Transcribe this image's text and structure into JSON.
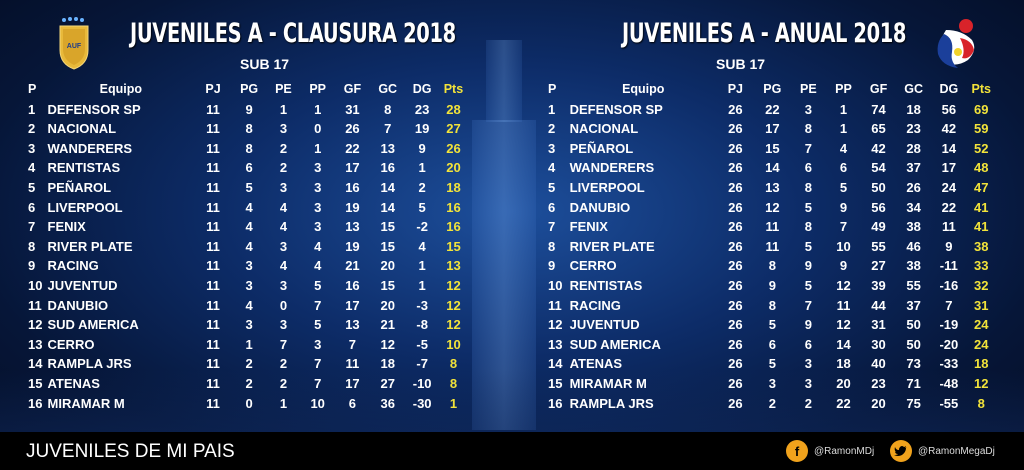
{
  "left": {
    "title": "JUVENILES A - CLAUSURA 2018",
    "subtitle": "SUB 17",
    "columns": [
      "P",
      "Equipo",
      "PJ",
      "PG",
      "PE",
      "PP",
      "GF",
      "GC",
      "DG",
      "Pts"
    ],
    "rows": [
      [
        "1",
        "DEFENSOR SP",
        "11",
        "9",
        "1",
        "1",
        "31",
        "8",
        "23",
        "28"
      ],
      [
        "2",
        "NACIONAL",
        "11",
        "8",
        "3",
        "0",
        "26",
        "7",
        "19",
        "27"
      ],
      [
        "3",
        "WANDERERS",
        "11",
        "8",
        "2",
        "1",
        "22",
        "13",
        "9",
        "26"
      ],
      [
        "4",
        "RENTISTAS",
        "11",
        "6",
        "2",
        "3",
        "17",
        "16",
        "1",
        "20"
      ],
      [
        "5",
        "PEÑAROL",
        "11",
        "5",
        "3",
        "3",
        "16",
        "14",
        "2",
        "18"
      ],
      [
        "6",
        "LIVERPOOL",
        "11",
        "4",
        "4",
        "3",
        "19",
        "14",
        "5",
        "16"
      ],
      [
        "7",
        "FENIX",
        "11",
        "4",
        "4",
        "3",
        "13",
        "15",
        "-2",
        "16"
      ],
      [
        "8",
        "RIVER PLATE",
        "11",
        "4",
        "3",
        "4",
        "19",
        "15",
        "4",
        "15"
      ],
      [
        "9",
        "RACING",
        "11",
        "3",
        "4",
        "4",
        "21",
        "20",
        "1",
        "13"
      ],
      [
        "10",
        "JUVENTUD",
        "11",
        "3",
        "3",
        "5",
        "16",
        "15",
        "1",
        "12"
      ],
      [
        "11",
        "DANUBIO",
        "11",
        "4",
        "0",
        "7",
        "17",
        "20",
        "-3",
        "12"
      ],
      [
        "12",
        "SUD AMERICA",
        "11",
        "3",
        "3",
        "5",
        "13",
        "21",
        "-8",
        "12"
      ],
      [
        "13",
        "CERRO",
        "11",
        "1",
        "7",
        "3",
        "7",
        "12",
        "-5",
        "10"
      ],
      [
        "14",
        "RAMPLA JRS",
        "11",
        "2",
        "2",
        "7",
        "11",
        "18",
        "-7",
        "8"
      ],
      [
        "15",
        "ATENAS",
        "11",
        "2",
        "2",
        "7",
        "17",
        "27",
        "-10",
        "8"
      ],
      [
        "16",
        "MIRAMAR M",
        "11",
        "0",
        "1",
        "10",
        "6",
        "36",
        "-30",
        "1"
      ]
    ]
  },
  "right": {
    "title": "JUVENILES A - ANUAL 2018",
    "subtitle": "SUB 17",
    "columns": [
      "P",
      "Equipo",
      "PJ",
      "PG",
      "PE",
      "PP",
      "GF",
      "GC",
      "DG",
      "Pts"
    ],
    "rows": [
      [
        "1",
        "DEFENSOR SP",
        "26",
        "22",
        "3",
        "1",
        "74",
        "18",
        "56",
        "69"
      ],
      [
        "2",
        "NACIONAL",
        "26",
        "17",
        "8",
        "1",
        "65",
        "23",
        "42",
        "59"
      ],
      [
        "3",
        "PEÑAROL",
        "26",
        "15",
        "7",
        "4",
        "42",
        "28",
        "14",
        "52"
      ],
      [
        "4",
        "WANDERERS",
        "26",
        "14",
        "6",
        "6",
        "54",
        "37",
        "17",
        "48"
      ],
      [
        "5",
        "LIVERPOOL",
        "26",
        "13",
        "8",
        "5",
        "50",
        "26",
        "24",
        "47"
      ],
      [
        "6",
        "DANUBIO",
        "26",
        "12",
        "5",
        "9",
        "56",
        "34",
        "22",
        "41"
      ],
      [
        "7",
        "FENIX",
        "26",
        "11",
        "8",
        "7",
        "49",
        "38",
        "11",
        "41"
      ],
      [
        "8",
        "RIVER PLATE",
        "26",
        "11",
        "5",
        "10",
        "55",
        "46",
        "9",
        "38"
      ],
      [
        "9",
        "CERRO",
        "26",
        "8",
        "9",
        "9",
        "27",
        "38",
        "-11",
        "33"
      ],
      [
        "10",
        "RENTISTAS",
        "26",
        "9",
        "5",
        "12",
        "39",
        "55",
        "-16",
        "32"
      ],
      [
        "11",
        "RACING",
        "26",
        "8",
        "7",
        "11",
        "44",
        "37",
        "7",
        "31"
      ],
      [
        "12",
        "JUVENTUD",
        "26",
        "5",
        "9",
        "12",
        "31",
        "50",
        "-19",
        "24"
      ],
      [
        "13",
        "SUD AMERICA",
        "26",
        "6",
        "6",
        "14",
        "30",
        "50",
        "-20",
        "24"
      ],
      [
        "14",
        "ATENAS",
        "26",
        "5",
        "3",
        "18",
        "40",
        "73",
        "-33",
        "18"
      ],
      [
        "15",
        "MIRAMAR M",
        "26",
        "3",
        "3",
        "20",
        "23",
        "71",
        "-48",
        "12"
      ],
      [
        "16",
        "RAMPLA JRS",
        "26",
        "2",
        "2",
        "22",
        "20",
        "75",
        "-55",
        "8"
      ]
    ]
  },
  "logos": {
    "auf_text": "AUF",
    "auf_icon": "auf-shield-icon",
    "right_icon": "youth-football-logo-icon"
  },
  "footer": {
    "title": "JUVENILES DE MI PAIS",
    "facebook_handle": "@RamonMDj",
    "twitter_handle": "@RamonMegaDj",
    "facebook_icon": "facebook-icon",
    "twitter_icon": "twitter-icon"
  },
  "colors": {
    "points": "#f2e33a",
    "background": "#0d2c68",
    "social_icon": "#f0a21c"
  }
}
